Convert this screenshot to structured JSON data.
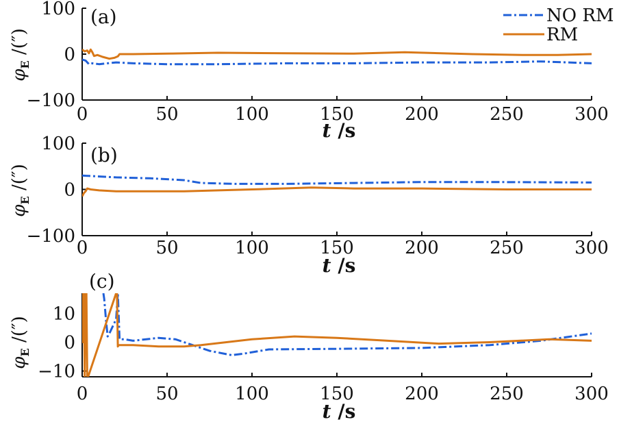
{
  "chart_data": [
    {
      "type": "line",
      "panel": "(a)",
      "xlabel_var": "t",
      "xlabel_unit": "/s",
      "ylabel_sym": "φ",
      "ylabel_sub": "E",
      "ylabel_unit": "/(″)",
      "xlim": [
        0,
        300
      ],
      "ylim": [
        -100,
        100
      ],
      "xticks": [
        0,
        50,
        100,
        150,
        200,
        250,
        300
      ],
      "yticks": [
        -100,
        0,
        100
      ],
      "legend": [
        "NO RM",
        "RM"
      ],
      "series": [
        {
          "name": "NO RM",
          "color": "#2060d8",
          "dash": "dashdot",
          "x": [
            0,
            2,
            4,
            6,
            10,
            15,
            20,
            30,
            50,
            80,
            120,
            160,
            200,
            240,
            270,
            300
          ],
          "y": [
            -12,
            -14,
            -22,
            -20,
            -22,
            -20,
            -18,
            -20,
            -22,
            -22,
            -20,
            -20,
            -18,
            -18,
            -16,
            -20
          ]
        },
        {
          "name": "RM",
          "color": "#d87818",
          "dash": "solid",
          "x": [
            0,
            1.5,
            3,
            4,
            5,
            6,
            7,
            9,
            12,
            16,
            19,
            21,
            22,
            30,
            50,
            80,
            120,
            160,
            190,
            230,
            260,
            280,
            300
          ],
          "y": [
            10,
            6,
            8,
            2,
            10,
            4,
            -4,
            -2,
            -6,
            -10,
            -8,
            -5,
            0,
            0,
            1,
            3,
            2,
            1,
            4,
            0,
            -2,
            -2,
            0
          ]
        }
      ]
    },
    {
      "type": "line",
      "panel": "(b)",
      "xlabel_var": "t",
      "xlabel_unit": "/s",
      "ylabel_sym": "φ",
      "ylabel_sub": "E",
      "ylabel_unit": "/(″)",
      "xlim": [
        0,
        300
      ],
      "ylim": [
        -100,
        100
      ],
      "xticks": [
        0,
        50,
        100,
        150,
        200,
        250,
        300
      ],
      "yticks": [
        -100,
        0,
        100
      ],
      "series": [
        {
          "name": "NO RM",
          "color": "#2060d8",
          "dash": "dashdot",
          "x": [
            0,
            10,
            20,
            40,
            60,
            70,
            90,
            120,
            160,
            200,
            240,
            300
          ],
          "y": [
            30,
            28,
            26,
            24,
            20,
            14,
            12,
            12,
            14,
            16,
            16,
            15
          ]
        },
        {
          "name": "RM",
          "color": "#d87818",
          "dash": "solid",
          "x": [
            0,
            1,
            2,
            3,
            5,
            10,
            20,
            40,
            60,
            80,
            100,
            135,
            160,
            200,
            250,
            300
          ],
          "y": [
            -15,
            -8,
            -4,
            2,
            0,
            -2,
            -4,
            -4,
            -4,
            -2,
            0,
            4,
            2,
            2,
            0,
            0
          ]
        }
      ]
    },
    {
      "type": "line",
      "panel": "(c)",
      "xlabel_var": "t",
      "xlabel_unit": "/s",
      "ylabel_sym": "φ",
      "ylabel_sub": "E",
      "ylabel_unit": "/(″)",
      "xlim": [
        0,
        300
      ],
      "ylim": [
        -12,
        17
      ],
      "xticks": [
        0,
        50,
        100,
        150,
        200,
        250,
        300
      ],
      "yticks": [
        -10,
        0,
        10
      ],
      "series": [
        {
          "name": "NO RM",
          "color": "#2060d8",
          "dash": "dashdot",
          "x": [
            12.5,
            13,
            14,
            15,
            16,
            20,
            21,
            22,
            25,
            30,
            45,
            55,
            65,
            75,
            88,
            95,
            110,
            150,
            200,
            240,
            270,
            300
          ],
          "y": [
            17,
            15,
            8,
            2,
            3,
            8,
            17,
            1,
            1,
            0.5,
            1.5,
            1,
            -1,
            -3,
            -4.5,
            -4,
            -2.5,
            -2.3,
            -2,
            -1,
            0.5,
            3
          ]
        },
        {
          "name": "RM",
          "color": "#d87818",
          "dash": "solid",
          "x": [
            0,
            0.5,
            1,
            1.5,
            2,
            2.5,
            3,
            3.5,
            20,
            20.5,
            21,
            21.5,
            22,
            30,
            45,
            60,
            70,
            85,
            100,
            125,
            150,
            180,
            210,
            240,
            275,
            300
          ],
          "y": [
            17,
            0,
            17,
            -12,
            17,
            17,
            -12,
            -12,
            17,
            17,
            -1.5,
            -1,
            -1,
            -1,
            -1.5,
            -1.5,
            -1,
            0,
            1,
            2,
            1.5,
            0.5,
            -0.5,
            0,
            1,
            0.5
          ]
        }
      ]
    }
  ]
}
